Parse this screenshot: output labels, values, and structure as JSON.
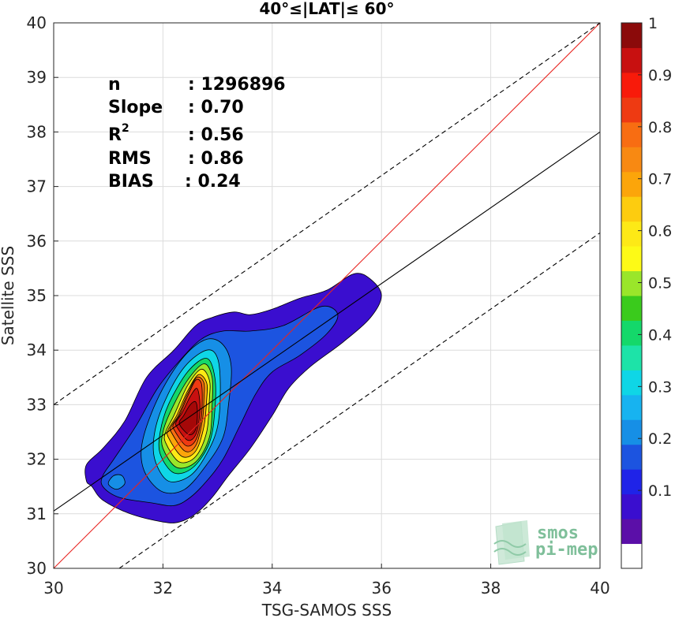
{
  "chart_data": {
    "type": "contour",
    "title": "40°≤|LAT|≤ 60°",
    "xlabel": "TSG-SAMOS SSS",
    "ylabel": "Satellite SSS",
    "xlim": [
      30,
      40
    ],
    "ylim": [
      30,
      40
    ],
    "xticks": [
      "30",
      "32",
      "34",
      "36",
      "38",
      "40"
    ],
    "yticks": [
      "30",
      "31",
      "32",
      "33",
      "34",
      "35",
      "36",
      "37",
      "38",
      "39",
      "40"
    ],
    "grid": true,
    "stats": [
      {
        "label": "n",
        "value": ": 1296896"
      },
      {
        "label": "Slope",
        "value": ": 0.70"
      },
      {
        "label": "R",
        "sup": "2",
        "value": ": 0.56"
      },
      {
        "label": "RMS",
        "value": ": 0.86"
      },
      {
        "label": "BIAS",
        "value": ": 0.24"
      }
    ],
    "lines": [
      {
        "name": "one-to-one",
        "color": "#e8231f",
        "style": "solid",
        "points": [
          [
            30,
            30
          ],
          [
            40,
            40
          ]
        ]
      },
      {
        "name": "regression",
        "color": "#000000",
        "style": "solid",
        "points": [
          [
            30,
            31.05
          ],
          [
            40,
            38.0
          ]
        ]
      },
      {
        "name": "upper-bound",
        "color": "#000000",
        "style": "dashed",
        "points": [
          [
            30,
            33.0
          ],
          [
            40,
            40.0
          ]
        ]
      },
      {
        "name": "lower-bound",
        "color": "#000000",
        "style": "dashed",
        "points": [
          [
            31.2,
            30.0
          ],
          [
            40,
            36.15
          ]
        ]
      }
    ],
    "density_peak": {
      "x": 32.5,
      "y": 32.9
    },
    "contour_levels": [
      {
        "level": 0.05,
        "color": "#3a0ecf",
        "points": [
          [
            30.6,
            31.6
          ],
          [
            30.7,
            31.5
          ],
          [
            30.9,
            31.25
          ],
          [
            31.4,
            31.0
          ],
          [
            32.0,
            30.85
          ],
          [
            32.3,
            30.85
          ],
          [
            32.6,
            31.0
          ],
          [
            32.9,
            31.3
          ],
          [
            33.2,
            31.7
          ],
          [
            33.6,
            32.2
          ],
          [
            34.0,
            32.8
          ],
          [
            34.3,
            33.3
          ],
          [
            34.7,
            33.7
          ],
          [
            35.3,
            34.15
          ],
          [
            35.8,
            34.6
          ],
          [
            36.0,
            35.0
          ],
          [
            35.8,
            35.3
          ],
          [
            35.5,
            35.4
          ],
          [
            35.0,
            35.1
          ],
          [
            34.5,
            34.95
          ],
          [
            34.0,
            34.75
          ],
          [
            33.6,
            34.65
          ],
          [
            33.3,
            34.7
          ],
          [
            32.9,
            34.6
          ],
          [
            32.6,
            34.45
          ],
          [
            32.2,
            34.0
          ],
          [
            31.7,
            33.5
          ],
          [
            31.3,
            32.7
          ],
          [
            30.9,
            32.2
          ],
          [
            30.6,
            31.9
          ]
        ]
      },
      {
        "level": 0.15,
        "color": "#1c54e0",
        "points": [
          [
            30.9,
            31.5
          ],
          [
            31.2,
            31.3
          ],
          [
            31.8,
            31.2
          ],
          [
            32.2,
            31.15
          ],
          [
            32.5,
            31.3
          ],
          [
            32.8,
            31.6
          ],
          [
            33.1,
            32.0
          ],
          [
            33.4,
            32.6
          ],
          [
            33.7,
            33.2
          ],
          [
            34.0,
            33.6
          ],
          [
            34.5,
            33.9
          ],
          [
            35.0,
            34.3
          ],
          [
            35.2,
            34.65
          ],
          [
            34.9,
            34.8
          ],
          [
            34.2,
            34.45
          ],
          [
            33.6,
            34.35
          ],
          [
            33.1,
            34.35
          ],
          [
            32.7,
            34.2
          ],
          [
            32.3,
            33.8
          ],
          [
            31.9,
            33.3
          ],
          [
            31.5,
            32.6
          ],
          [
            31.1,
            32.0
          ],
          [
            30.9,
            31.7
          ]
        ]
      },
      {
        "level": 0.25,
        "color": "#168fe6",
        "points": [
          [
            31.7,
            31.7
          ],
          [
            32.0,
            31.4
          ],
          [
            32.4,
            31.45
          ],
          [
            32.8,
            31.9
          ],
          [
            33.1,
            32.4
          ],
          [
            33.2,
            33.0
          ],
          [
            33.25,
            33.7
          ],
          [
            33.1,
            34.1
          ],
          [
            32.8,
            34.2
          ],
          [
            32.4,
            33.9
          ],
          [
            32.0,
            33.3
          ],
          [
            31.7,
            32.6
          ],
          [
            31.6,
            32.1
          ]
        ]
      },
      {
        "level": 0.35,
        "color": "#0fd6e6",
        "points": [
          [
            31.85,
            32.0
          ],
          [
            32.1,
            31.6
          ],
          [
            32.5,
            31.7
          ],
          [
            32.8,
            32.1
          ],
          [
            33.0,
            32.6
          ],
          [
            33.05,
            33.3
          ],
          [
            33.0,
            33.85
          ],
          [
            32.8,
            34.0
          ],
          [
            32.4,
            33.7
          ],
          [
            32.05,
            33.1
          ],
          [
            31.85,
            32.5
          ]
        ]
      },
      {
        "level": 0.45,
        "color": "#14d86a",
        "points": [
          [
            31.95,
            32.1
          ],
          [
            32.2,
            31.75
          ],
          [
            32.55,
            31.85
          ],
          [
            32.85,
            32.3
          ],
          [
            32.95,
            32.9
          ],
          [
            32.95,
            33.5
          ],
          [
            32.8,
            33.85
          ],
          [
            32.45,
            33.6
          ],
          [
            32.1,
            33.0
          ],
          [
            31.95,
            32.5
          ]
        ]
      },
      {
        "level": 0.55,
        "color": "#9ae62a",
        "points": [
          [
            32.0,
            32.2
          ],
          [
            32.25,
            31.85
          ],
          [
            32.6,
            31.95
          ],
          [
            32.85,
            32.4
          ],
          [
            32.9,
            33.0
          ],
          [
            32.9,
            33.5
          ],
          [
            32.75,
            33.75
          ],
          [
            32.45,
            33.45
          ],
          [
            32.15,
            32.9
          ],
          [
            32.0,
            32.5
          ]
        ]
      },
      {
        "level": 0.65,
        "color": "#fde916",
        "points": [
          [
            32.05,
            32.3
          ],
          [
            32.3,
            31.95
          ],
          [
            32.6,
            32.05
          ],
          [
            32.8,
            32.5
          ],
          [
            32.85,
            33.1
          ],
          [
            32.85,
            33.45
          ],
          [
            32.7,
            33.65
          ],
          [
            32.45,
            33.35
          ],
          [
            32.2,
            32.8
          ],
          [
            32.05,
            32.5
          ]
        ]
      },
      {
        "level": 0.72,
        "color": "#fca50a",
        "points": [
          [
            32.1,
            32.4
          ],
          [
            32.35,
            32.05
          ],
          [
            32.6,
            32.15
          ],
          [
            32.75,
            32.6
          ],
          [
            32.8,
            33.1
          ],
          [
            32.8,
            33.4
          ],
          [
            32.65,
            33.55
          ],
          [
            32.45,
            33.25
          ],
          [
            32.25,
            32.8
          ],
          [
            32.1,
            32.55
          ]
        ]
      },
      {
        "level": 0.78,
        "color": "#f86d12",
        "points": [
          [
            32.15,
            32.5
          ],
          [
            32.4,
            32.15
          ],
          [
            32.6,
            32.25
          ],
          [
            32.72,
            32.7
          ],
          [
            32.75,
            33.1
          ],
          [
            32.75,
            33.4
          ],
          [
            32.62,
            33.5
          ],
          [
            32.45,
            33.2
          ],
          [
            32.28,
            32.8
          ],
          [
            32.15,
            32.6
          ]
        ]
      },
      {
        "level": 0.85,
        "color": "#ee3a12",
        "points": [
          [
            32.2,
            32.55
          ],
          [
            32.42,
            32.25
          ],
          [
            32.6,
            32.35
          ],
          [
            32.7,
            32.75
          ],
          [
            32.72,
            33.15
          ],
          [
            32.7,
            33.4
          ],
          [
            32.6,
            33.45
          ],
          [
            32.45,
            33.15
          ],
          [
            32.3,
            32.8
          ],
          [
            32.2,
            32.65
          ]
        ]
      },
      {
        "level": 0.92,
        "color": "#c81010",
        "points": [
          [
            32.25,
            32.6
          ],
          [
            32.45,
            32.35
          ],
          [
            32.6,
            32.45
          ],
          [
            32.67,
            32.8
          ],
          [
            32.67,
            33.1
          ],
          [
            32.62,
            33.3
          ],
          [
            32.5,
            33.15
          ],
          [
            32.35,
            32.85
          ],
          [
            32.25,
            32.7
          ]
        ]
      },
      {
        "level": 0.97,
        "color": "#a50808",
        "points": [
          [
            32.3,
            32.65
          ],
          [
            32.48,
            32.45
          ],
          [
            32.6,
            32.55
          ],
          [
            32.63,
            32.85
          ],
          [
            32.6,
            33.05
          ],
          [
            32.5,
            33.0
          ],
          [
            32.38,
            32.8
          ]
        ]
      }
    ],
    "sub_blobs": [
      {
        "level": 0.25,
        "color": "#168fe6",
        "points": [
          [
            31.0,
            31.55
          ],
          [
            31.15,
            31.45
          ],
          [
            31.3,
            31.55
          ],
          [
            31.25,
            31.7
          ],
          [
            31.1,
            31.7
          ]
        ]
      }
    ],
    "colorbar": {
      "ticks": [
        "0.1",
        "0.2",
        "0.3",
        "0.4",
        "0.5",
        "0.6",
        "0.7",
        "0.8",
        "0.9",
        "1"
      ],
      "colors": [
        "#ffffff",
        "#5b0fa8",
        "#3a0ecf",
        "#1f23e8",
        "#1c54e0",
        "#168fe6",
        "#17b3f0",
        "#0fd6e6",
        "#1de3a8",
        "#14d86a",
        "#3acb1c",
        "#9ae62a",
        "#fdfa16",
        "#fde916",
        "#fdcc0f",
        "#fca50a",
        "#f88912",
        "#f86d12",
        "#ee3a12",
        "#f81a0a",
        "#c81010",
        "#8b0a0a"
      ]
    },
    "logo": {
      "line1": "smos",
      "line2": "pi-mep"
    }
  }
}
